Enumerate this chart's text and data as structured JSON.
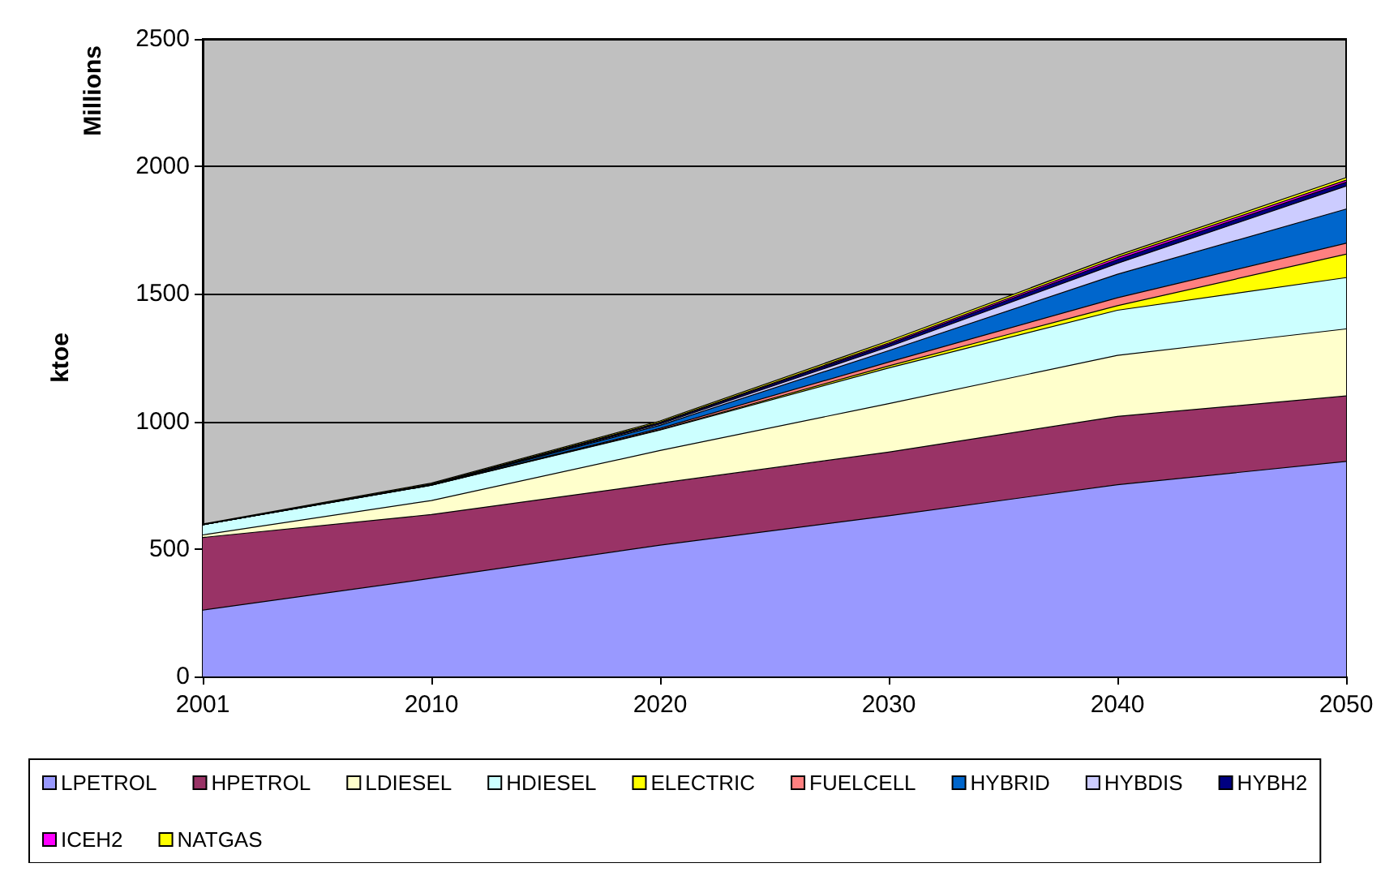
{
  "chart_data": {
    "type": "area",
    "stacked": true,
    "ylabel": "ktoe",
    "annotations": [
      "Millions"
    ],
    "categories": [
      "2001",
      "2010",
      "2020",
      "2030",
      "2040",
      "2050"
    ],
    "ylim": [
      0,
      2500
    ],
    "yticks": [
      0,
      500,
      1000,
      1500,
      2000,
      2500
    ],
    "grid": "y",
    "legend": "bottom",
    "marker": "none",
    "series": [
      {
        "name": "LPETROL",
        "color": "#9999ff",
        "values": [
          260,
          385,
          515,
          630,
          752,
          843
        ]
      },
      {
        "name": "HPETROL",
        "color": "#993366",
        "values": [
          285,
          250,
          243,
          250,
          268,
          257
        ]
      },
      {
        "name": "LDIESEL",
        "color": "#ffffcc",
        "values": [
          10,
          55,
          128,
          190,
          239,
          263
        ]
      },
      {
        "name": "HDIESEL",
        "color": "#ccffff",
        "values": [
          40,
          60,
          80,
          140,
          177,
          201
        ]
      },
      {
        "name": "ELECTRIC",
        "color": "#ffff00",
        "values": [
          0,
          0,
          2,
          8,
          18,
          92
        ]
      },
      {
        "name": "FUELCELL",
        "color": "#ff8080",
        "values": [
          0,
          0,
          5,
          15,
          31,
          43
        ]
      },
      {
        "name": "HYBRID",
        "color": "#0066cc",
        "values": [
          0,
          2,
          12,
          45,
          92,
          134
        ]
      },
      {
        "name": "HYBDIS",
        "color": "#ccccff",
        "values": [
          0,
          0,
          5,
          15,
          43,
          90
        ]
      },
      {
        "name": "HYBH2",
        "color": "#000080",
        "values": [
          0,
          2,
          5,
          10,
          15,
          15
        ]
      },
      {
        "name": "ICEH2",
        "color": "#ff00ff",
        "values": [
          0,
          0,
          2,
          5,
          8,
          8
        ]
      },
      {
        "name": "NATGAS",
        "color": "#ffff00",
        "values": [
          3,
          4,
          5,
          8,
          8,
          10
        ]
      }
    ]
  }
}
